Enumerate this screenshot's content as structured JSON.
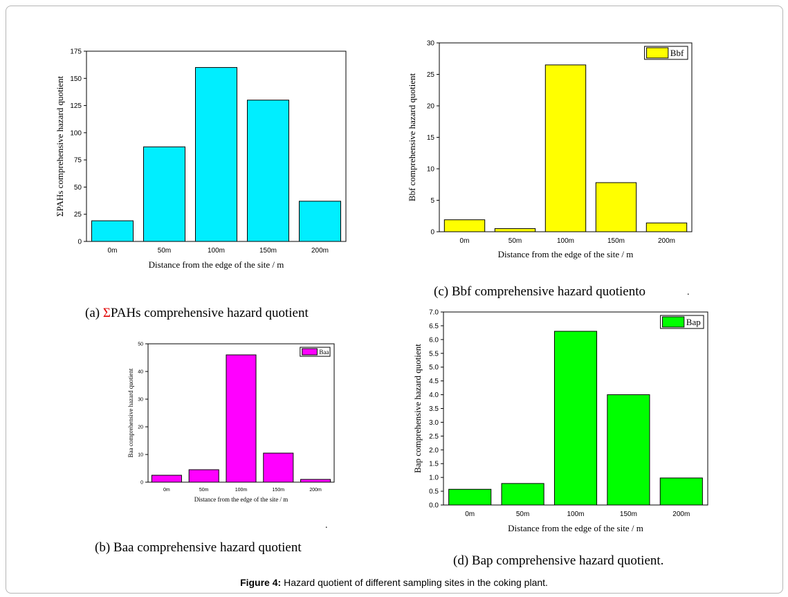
{
  "chart_data": [
    {
      "id": "a",
      "type": "bar",
      "categories": [
        "0m",
        "50m",
        "100m",
        "150m",
        "200m"
      ],
      "values": [
        19,
        87,
        160,
        130,
        37
      ],
      "xlabel": "Distance from the edge of the site / m",
      "ylabel": "ΣPAHs comprehensive hazard quotient",
      "ylim": [
        0,
        175
      ],
      "yticks": [
        0,
        25,
        50,
        75,
        100,
        125,
        150,
        175
      ],
      "legend": "",
      "color": "#00eeff"
    },
    {
      "id": "b",
      "type": "bar",
      "categories": [
        "0m",
        "50m",
        "100m",
        "150m",
        "200m"
      ],
      "values": [
        2.5,
        4.5,
        46,
        10.5,
        1
      ],
      "xlabel": "Distance from the edge of the site / m",
      "ylabel": "Baa comprehensive hazard quotient",
      "ylim": [
        0,
        50
      ],
      "yticks": [
        0,
        10,
        20,
        30,
        40,
        50
      ],
      "legend": "Baa",
      "color": "#ff00ff"
    },
    {
      "id": "c",
      "type": "bar",
      "categories": [
        "0m",
        "50m",
        "100m",
        "150m",
        "200m"
      ],
      "values": [
        1.9,
        0.5,
        26.5,
        7.8,
        1.4
      ],
      "xlabel": "Distance from the edge of the site / m",
      "ylabel": "Bbf comprehensive hazard quotient",
      "ylim": [
        0,
        30
      ],
      "yticks": [
        0,
        5,
        10,
        15,
        20,
        25,
        30
      ],
      "legend": "Bbf",
      "color": "#ffff00"
    },
    {
      "id": "d",
      "type": "bar",
      "categories": [
        "0m",
        "50m",
        "100m",
        "150m",
        "200m"
      ],
      "values": [
        0.57,
        0.78,
        6.3,
        4.0,
        0.98
      ],
      "xlabel": "Distance from the edge of the site / m",
      "ylabel": "Bap comprehensive hazard quotient",
      "ylim": [
        0,
        7
      ],
      "yticks": [
        "0.0",
        "0.5",
        "1.0",
        "1.5",
        "2.0",
        "2.5",
        "3.0",
        "3.5",
        "4.0",
        "4.5",
        "5.0",
        "5.5",
        "6.0",
        "6.5",
        "7.0"
      ],
      "legend": "Bap",
      "color": "#00ff00"
    }
  ],
  "captions": {
    "a_prefix": "(a) ",
    "a_sigma": "Σ",
    "a_rest": "PAHs comprehensive hazard quotient",
    "b": "(b) Baa comprehensive hazard quotient",
    "c": "(c) Bbf comprehensive hazard quotiento",
    "c_dot": ".",
    "b_dot": ".",
    "d": "(d) Bap comprehensive hazard quotient."
  },
  "figure_caption": {
    "label": "Figure 4:",
    "text": " Hazard quotient of different sampling sites in the coking plant."
  }
}
